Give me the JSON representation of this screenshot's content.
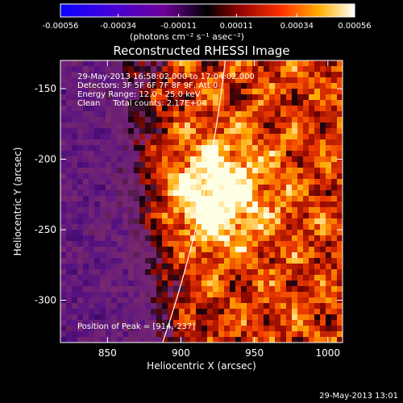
{
  "colorbar": {
    "ticks": [
      "-0.00056",
      "-0.00034",
      "-0.00011",
      "0.00011",
      "0.00034",
      "0.00056"
    ],
    "values": [
      -0.00056,
      -0.00034,
      -0.00011,
      0.00011,
      0.00034,
      0.00056
    ],
    "range": [
      -0.00056,
      0.00056
    ],
    "units": "(photons cm⁻² s⁻¹ asec⁻²)"
  },
  "title": "Reconstructed RHESSI Image",
  "annotations": {
    "time": "29-May-2013 16:58:02.000 to 17:04:02.000",
    "detectors": "Detectors: 3F 5F 6F 7F 8F 9F, Att 0",
    "energy": "Energy Range: 12.0 - 25.0 keV",
    "method": "Clean     Total counts: 2.17E+04",
    "peak": "Position of Peak = [914,-237]"
  },
  "axes": {
    "x_label": "Heliocentric X (arcsec)",
    "y_label": "Heliocentric Y (arcsec)",
    "x_ticks": [
      "850",
      "900",
      "950",
      "1000"
    ],
    "x_tick_values": [
      850,
      900,
      950,
      1000
    ],
    "y_ticks": [
      "-150",
      "-200",
      "-250",
      "-300"
    ],
    "y_tick_values": [
      -150,
      -200,
      -250,
      -300
    ],
    "xlim": [
      818,
      1010
    ],
    "ylim": [
      -330,
      -130
    ]
  },
  "limb_color": "#ffffff",
  "peak_position": [
    914,
    -237
  ],
  "footer": "29-May-2013 13:01"
}
